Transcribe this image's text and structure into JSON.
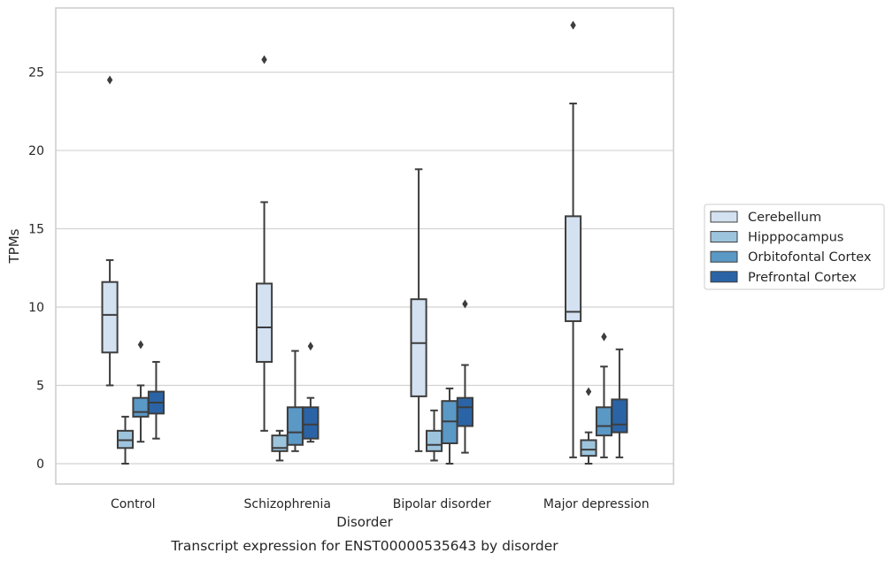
{
  "chart_data": {
    "type": "box",
    "caption": "Transcript expression for ENST00000535643 by disorder",
    "xlabel": "Disorder",
    "ylabel": "TPMs",
    "ylim": [
      -1.3,
      29.1
    ],
    "yticks": [
      0,
      5,
      10,
      15,
      20,
      25
    ],
    "grid": "horizontal",
    "legend_position": "right",
    "categories": [
      "Control",
      "Schizophrenia",
      "Bipolar disorder",
      "Major depression"
    ],
    "series": [
      {
        "name": "Cerebellum",
        "color": "#d3e1f1",
        "boxes": [
          {
            "whislo": 5.0,
            "q1": 7.1,
            "med": 9.5,
            "q3": 11.6,
            "whishi": 13.0,
            "fliers": [
              24.5
            ]
          },
          {
            "whislo": 2.1,
            "q1": 6.5,
            "med": 8.7,
            "q3": 11.5,
            "whishi": 16.7,
            "fliers": [
              25.8
            ]
          },
          {
            "whislo": 0.8,
            "q1": 4.3,
            "med": 7.7,
            "q3": 10.5,
            "whishi": 18.8,
            "fliers": []
          },
          {
            "whislo": 0.4,
            "q1": 9.1,
            "med": 9.7,
            "q3": 15.8,
            "whishi": 23.0,
            "fliers": [
              28.0
            ]
          }
        ]
      },
      {
        "name": "Hipppocampus",
        "color": "#9dc4dd",
        "boxes": [
          {
            "whislo": 0.0,
            "q1": 1.0,
            "med": 1.5,
            "q3": 2.1,
            "whishi": 3.0,
            "fliers": []
          },
          {
            "whislo": 0.2,
            "q1": 0.8,
            "med": 1.0,
            "q3": 1.8,
            "whishi": 2.1,
            "fliers": []
          },
          {
            "whislo": 0.2,
            "q1": 0.8,
            "med": 1.2,
            "q3": 2.1,
            "whishi": 3.4,
            "fliers": []
          },
          {
            "whislo": 0.0,
            "q1": 0.5,
            "med": 0.9,
            "q3": 1.5,
            "whishi": 2.0,
            "fliers": [
              4.6
            ]
          }
        ]
      },
      {
        "name": "Orbitofontal Cortex",
        "color": "#5a98c6",
        "boxes": [
          {
            "whislo": 1.4,
            "q1": 3.0,
            "med": 3.3,
            "q3": 4.2,
            "whishi": 5.0,
            "fliers": [
              7.6
            ]
          },
          {
            "whislo": 0.8,
            "q1": 1.2,
            "med": 2.0,
            "q3": 3.6,
            "whishi": 7.2,
            "fliers": []
          },
          {
            "whislo": 0.0,
            "q1": 1.3,
            "med": 2.7,
            "q3": 4.0,
            "whishi": 4.8,
            "fliers": []
          },
          {
            "whislo": 0.4,
            "q1": 1.8,
            "med": 2.4,
            "q3": 3.6,
            "whishi": 6.2,
            "fliers": [
              8.1
            ]
          }
        ]
      },
      {
        "name": "Prefrontal Cortex",
        "color": "#2a64a6",
        "boxes": [
          {
            "whislo": 1.6,
            "q1": 3.2,
            "med": 3.9,
            "q3": 4.6,
            "whishi": 6.5,
            "fliers": []
          },
          {
            "whislo": 1.4,
            "q1": 1.6,
            "med": 2.5,
            "q3": 3.6,
            "whishi": 4.2,
            "fliers": [
              7.5
            ]
          },
          {
            "whislo": 0.7,
            "q1": 2.4,
            "med": 3.6,
            "q3": 4.2,
            "whishi": 6.3,
            "fliers": [
              10.2
            ]
          },
          {
            "whislo": 0.4,
            "q1": 2.0,
            "med": 2.5,
            "q3": 4.1,
            "whishi": 7.3,
            "fliers": []
          }
        ]
      }
    ],
    "colors": {
      "edge": "#3d3d3d",
      "grid": "#d2d2d2",
      "spine": "#cccccc"
    }
  }
}
